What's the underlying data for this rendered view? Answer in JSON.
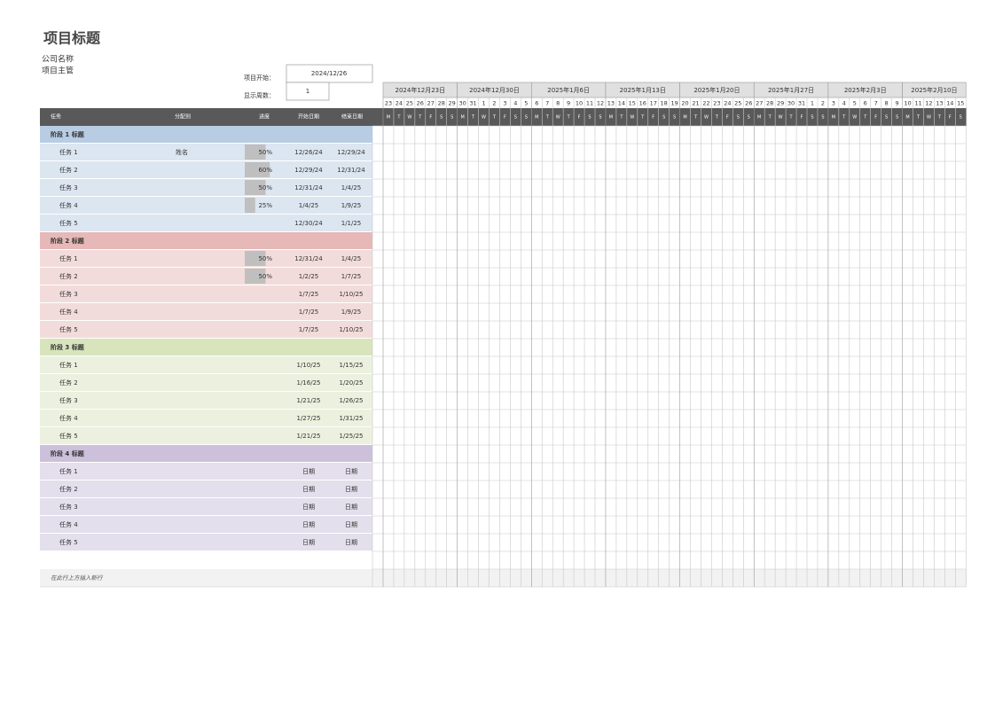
{
  "header": {
    "title": "项目标题",
    "company": "公司名称",
    "manager": "项目主管"
  },
  "settings": {
    "start_label": "项目开始：",
    "start_value": "2024/12/26",
    "weeks_label": "显示周数：",
    "weeks_value": 1
  },
  "timeline": {
    "weeks": [
      "2024年12月23日",
      "2024年12月30日",
      "2025年1月6日",
      "2025年1月13日",
      "2025年1月20日",
      "2025年1月27日",
      "2025年2月3日",
      "2025年2月10日"
    ],
    "day_numbers": [
      "23",
      "24",
      "25",
      "26",
      "27",
      "28",
      "29",
      "30",
      "31",
      "1",
      "2",
      "3",
      "4",
      "5",
      "6",
      "7",
      "8",
      "9",
      "10",
      "11",
      "12",
      "13",
      "14",
      "15",
      "16",
      "17",
      "18",
      "19",
      "20",
      "21",
      "22",
      "23",
      "24",
      "25",
      "26",
      "27",
      "28",
      "29",
      "30",
      "31",
      "1",
      "2",
      "3",
      "4",
      "5",
      "6",
      "7",
      "8",
      "9",
      "10",
      "11",
      "12",
      "13",
      "14",
      "15"
    ],
    "day_letters": [
      "M",
      "T",
      "W",
      "T",
      "F",
      "S",
      "S",
      "M",
      "T",
      "W",
      "T",
      "F",
      "S",
      "S",
      "M",
      "T",
      "W",
      "T",
      "F",
      "S",
      "S",
      "M",
      "T",
      "W",
      "T",
      "F",
      "S",
      "S",
      "M",
      "T",
      "W",
      "T",
      "F",
      "S",
      "S",
      "M",
      "T",
      "W",
      "T",
      "F",
      "S",
      "S",
      "M",
      "T",
      "W",
      "T",
      "F",
      "S",
      "S",
      "M",
      "T",
      "W",
      "T",
      "F",
      "S"
    ]
  },
  "table": {
    "columns": [
      "任务",
      "分配到",
      "进度",
      "开始日期",
      "结束日期"
    ],
    "phases": [
      {
        "name": "阶段 1 标题",
        "color": "#b8cce4",
        "row_color": "#dce6f1",
        "tasks": [
          {
            "name": "任务 1",
            "assignee": "姓名",
            "progress": {
              "value": 50,
              "label": "50%"
            },
            "start": "12/26/24",
            "end": "12/29/24"
          },
          {
            "name": "任务 2",
            "progress": {
              "value": 60,
              "label": "60%"
            },
            "start": "12/29/24",
            "end": "12/31/24"
          },
          {
            "name": "任务 3",
            "progress": {
              "value": 50,
              "label": "50%"
            },
            "start": "12/31/24",
            "end": "1/4/25"
          },
          {
            "name": "任务 4",
            "progress": {
              "value": 25,
              "label": "25%"
            },
            "start": "1/4/25",
            "end": "1/9/25"
          },
          {
            "name": "任务 5",
            "start": "12/30/24",
            "end": "1/1/25"
          }
        ]
      },
      {
        "name": "阶段 2 标题",
        "color": "#e6b8b7",
        "row_color": "#f2dcdb",
        "tasks": [
          {
            "name": "任务 1",
            "progress": {
              "value": 50,
              "label": "50%"
            },
            "start": "12/31/24",
            "end": "1/4/25"
          },
          {
            "name": "任务 2",
            "progress": {
              "value": 50,
              "label": "50%"
            },
            "start": "1/2/25",
            "end": "1/7/25"
          },
          {
            "name": "任务 3",
            "start": "1/7/25",
            "end": "1/10/25"
          },
          {
            "name": "任务 4",
            "start": "1/7/25",
            "end": "1/9/25"
          },
          {
            "name": "任务 5",
            "start": "1/7/25",
            "end": "1/10/25"
          }
        ]
      },
      {
        "name": "阶段 3 标题",
        "color": "#d8e4bc",
        "row_color": "#ebf1de",
        "tasks": [
          {
            "name": "任务 1",
            "start": "1/10/25",
            "end": "1/15/25"
          },
          {
            "name": "任务 2",
            "start": "1/16/25",
            "end": "1/20/25"
          },
          {
            "name": "任务 3",
            "start": "1/21/25",
            "end": "1/26/25"
          },
          {
            "name": "任务 4",
            "start": "1/27/25",
            "end": "1/31/25"
          },
          {
            "name": "任务 5",
            "start": "1/21/25",
            "end": "1/25/25"
          }
        ]
      },
      {
        "name": "阶段 4 标题",
        "color": "#ccc0da",
        "row_color": "#e4dfec",
        "tasks": [
          {
            "name": "任务 1",
            "start": "日期",
            "end": "日期"
          },
          {
            "name": "任务 2",
            "start": "日期",
            "end": "日期"
          },
          {
            "name": "任务 3",
            "start": "日期",
            "end": "日期"
          },
          {
            "name": "任务 4",
            "start": "日期",
            "end": "日期"
          },
          {
            "name": "任务 5",
            "start": "日期",
            "end": "日期"
          }
        ]
      }
    ]
  },
  "footer": "在此行上方插入新行"
}
